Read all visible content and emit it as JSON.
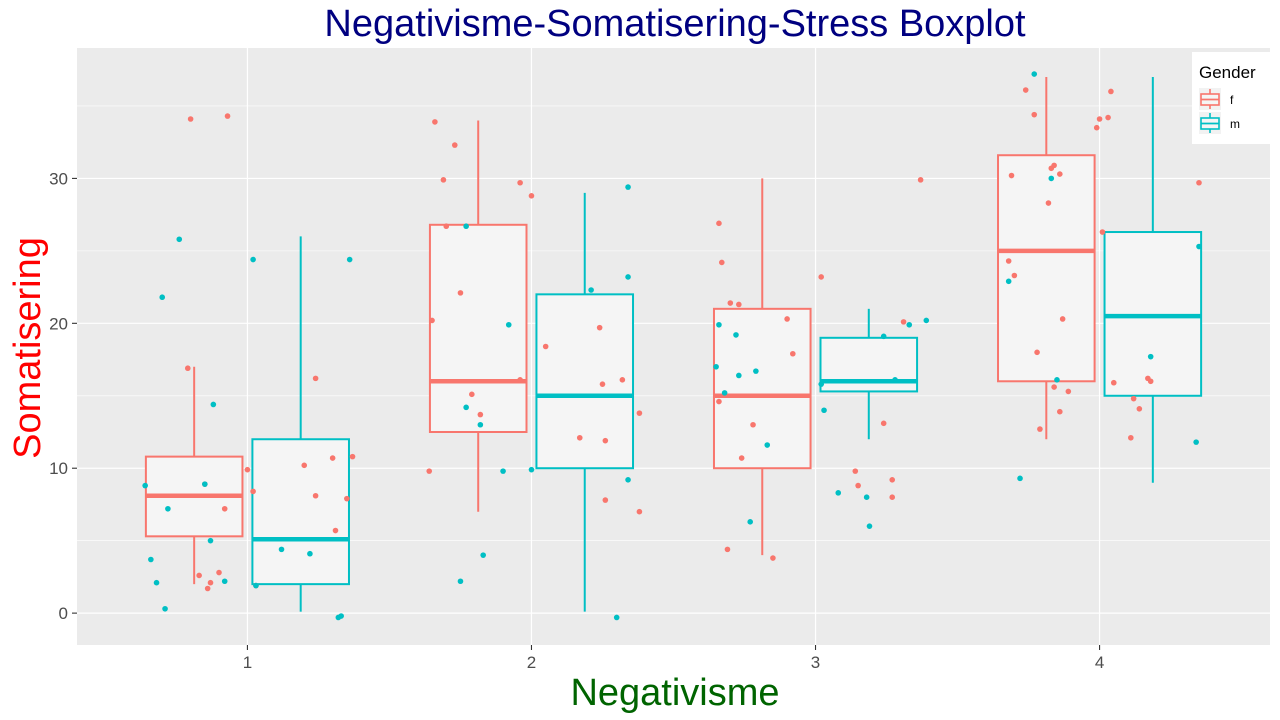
{
  "chart_data": {
    "type": "boxplot",
    "title": "Negativisme-Somatisering-Stress Boxplot",
    "xlabel": "Negativisme",
    "ylabel": "Somatisering",
    "categories": [
      "1",
      "2",
      "3",
      "4"
    ],
    "y_ticks": [
      0,
      10,
      20,
      30
    ],
    "ylim": [
      -2.2,
      39
    ],
    "xlim": [
      0.4,
      4.6
    ],
    "grid": true,
    "legend": {
      "title": "Gender",
      "position": "top-right",
      "entries": [
        "f",
        "m"
      ]
    },
    "colors": {
      "title": "#000080",
      "xlabel": "#006400",
      "ylabel": "#ff0000",
      "f": "#f8766d",
      "m": "#00bfc4",
      "panel": "#ebebeb",
      "box_fill": "#f5f5f5",
      "grid": "#ffffff"
    },
    "series": [
      {
        "name": "f",
        "boxes": [
          {
            "category": "1",
            "lower_whisker": 2,
            "q1": 5.3,
            "median": 8.1,
            "q3": 10.8,
            "upper_whisker": 17
          },
          {
            "category": "2",
            "lower_whisker": 7,
            "q1": 12.5,
            "median": 16,
            "q3": 26.8,
            "upper_whisker": 34
          },
          {
            "category": "3",
            "lower_whisker": 4,
            "q1": 10,
            "median": 15,
            "q3": 21,
            "upper_whisker": 30
          },
          {
            "category": "4",
            "lower_whisker": 12,
            "q1": 16,
            "median": 25,
            "q3": 31.6,
            "upper_whisker": 37
          }
        ],
        "points": [
          [
            0.8,
            34.1
          ],
          [
            0.93,
            34.3
          ],
          [
            0.79,
            16.9
          ],
          [
            0.83,
            2.6
          ],
          [
            0.87,
            2.1
          ],
          [
            0.9,
            2.8
          ],
          [
            0.86,
            1.7
          ],
          [
            1.0,
            9.9
          ],
          [
            0.92,
            7.2
          ],
          [
            0.85,
            8.9
          ],
          [
            1.24,
            16.2
          ],
          [
            1.37,
            10.8
          ],
          [
            1.35,
            7.9
          ],
          [
            1.2,
            10.2
          ],
          [
            1.3,
            10.7
          ],
          [
            1.24,
            8.1
          ],
          [
            1.31,
            5.7
          ],
          [
            1.02,
            8.4
          ],
          [
            1.03,
            1.9
          ],
          [
            1.66,
            33.9
          ],
          [
            1.69,
            29.9
          ],
          [
            1.73,
            32.3
          ],
          [
            1.64,
            9.8
          ],
          [
            1.65,
            20.2
          ],
          [
            1.79,
            15.1
          ],
          [
            1.82,
            13.7
          ],
          [
            1.96,
            29.7
          ],
          [
            2.0,
            28.8
          ],
          [
            1.7,
            26.7
          ],
          [
            1.75,
            22.1
          ],
          [
            1.96,
            16.1
          ],
          [
            2.05,
            18.4
          ],
          [
            2.24,
            19.7
          ],
          [
            2.17,
            12.1
          ],
          [
            2.25,
            15.8
          ],
          [
            2.32,
            16.1
          ],
          [
            2.26,
            11.9
          ],
          [
            2.26,
            7.8
          ],
          [
            2.38,
            13.8
          ],
          [
            2.38,
            7.0
          ],
          [
            2.66,
            26.9
          ],
          [
            2.67,
            24.2
          ],
          [
            2.66,
            14.6
          ],
          [
            2.7,
            21.4
          ],
          [
            2.73,
            21.3
          ],
          [
            2.69,
            4.4
          ],
          [
            2.74,
            10.7
          ],
          [
            2.85,
            3.8
          ],
          [
            2.78,
            13.0
          ],
          [
            2.9,
            20.3
          ],
          [
            2.92,
            17.9
          ],
          [
            3.02,
            23.2
          ],
          [
            3.14,
            9.8
          ],
          [
            3.15,
            8.8
          ],
          [
            3.24,
            13.1
          ],
          [
            3.27,
            9.2
          ],
          [
            3.27,
            8.0
          ],
          [
            3.31,
            20.1
          ],
          [
            3.37,
            29.9
          ],
          [
            3.68,
            24.3
          ],
          [
            3.69,
            30.2
          ],
          [
            3.7,
            23.3
          ],
          [
            3.74,
            36.1
          ],
          [
            3.77,
            34.4
          ],
          [
            3.78,
            18.0
          ],
          [
            3.82,
            28.3
          ],
          [
            3.83,
            30.7
          ],
          [
            3.84,
            30.9
          ],
          [
            3.86,
            30.3
          ],
          [
            3.87,
            20.3
          ],
          [
            3.89,
            15.3
          ],
          [
            3.79,
            12.7
          ],
          [
            3.84,
            15.6
          ],
          [
            3.86,
            13.9
          ],
          [
            3.99,
            33.5
          ],
          [
            4.0,
            34.1
          ],
          [
            4.03,
            34.2
          ],
          [
            4.04,
            36.0
          ],
          [
            4.01,
            26.3
          ],
          [
            4.05,
            15.9
          ],
          [
            4.11,
            12.1
          ],
          [
            4.12,
            14.8
          ],
          [
            4.14,
            14.1
          ],
          [
            4.17,
            16.2
          ],
          [
            4.18,
            16.0
          ],
          [
            4.35,
            29.7
          ]
        ]
      },
      {
        "name": "m",
        "boxes": [
          {
            "category": "1",
            "lower_whisker": 0.1,
            "q1": 2,
            "median": 5.1,
            "q3": 12,
            "upper_whisker": 26
          },
          {
            "category": "2",
            "lower_whisker": 0.1,
            "q1": 10,
            "median": 15,
            "q3": 22,
            "upper_whisker": 29
          },
          {
            "category": "3",
            "lower_whisker": 12,
            "q1": 15.3,
            "median": 16,
            "q3": 19,
            "upper_whisker": 21
          },
          {
            "category": "4",
            "lower_whisker": 9,
            "q1": 15,
            "median": 20.5,
            "q3": 26.3,
            "upper_whisker": 37
          }
        ],
        "points": [
          [
            0.64,
            8.8
          ],
          [
            0.66,
            3.7
          ],
          [
            0.68,
            2.1
          ],
          [
            0.7,
            21.8
          ],
          [
            0.71,
            0.3
          ],
          [
            0.72,
            7.2
          ],
          [
            0.76,
            25.8
          ],
          [
            0.85,
            8.9
          ],
          [
            0.87,
            5.0
          ],
          [
            0.88,
            14.4
          ],
          [
            0.92,
            2.2
          ],
          [
            1.02,
            24.4
          ],
          [
            1.03,
            1.9
          ],
          [
            1.12,
            4.4
          ],
          [
            1.22,
            4.1
          ],
          [
            1.32,
            -0.3
          ],
          [
            1.33,
            -0.2
          ],
          [
            1.36,
            24.4
          ],
          [
            1.75,
            2.2
          ],
          [
            1.77,
            26.7
          ],
          [
            1.77,
            14.2
          ],
          [
            1.82,
            13.0
          ],
          [
            1.83,
            4.0
          ],
          [
            1.9,
            9.8
          ],
          [
            1.92,
            19.9
          ],
          [
            2.0,
            9.9
          ],
          [
            2.21,
            22.3
          ],
          [
            2.3,
            -0.3
          ],
          [
            2.34,
            29.4
          ],
          [
            2.34,
            23.2
          ],
          [
            2.34,
            9.2
          ],
          [
            2.65,
            17.0
          ],
          [
            2.66,
            19.9
          ],
          [
            2.68,
            15.2
          ],
          [
            2.72,
            19.2
          ],
          [
            2.73,
            16.4
          ],
          [
            2.77,
            6.3
          ],
          [
            2.79,
            16.7
          ],
          [
            2.83,
            11.6
          ],
          [
            3.02,
            15.8
          ],
          [
            3.03,
            14.0
          ],
          [
            3.08,
            8.3
          ],
          [
            3.18,
            8.0
          ],
          [
            3.19,
            6.0
          ],
          [
            3.24,
            19.1
          ],
          [
            3.28,
            16.1
          ],
          [
            3.33,
            19.9
          ],
          [
            3.39,
            20.2
          ],
          [
            3.68,
            22.9
          ],
          [
            3.72,
            9.3
          ],
          [
            3.77,
            37.2
          ],
          [
            3.83,
            30.0
          ],
          [
            3.85,
            16.1
          ],
          [
            4.18,
            17.7
          ],
          [
            4.34,
            11.8
          ],
          [
            4.35,
            25.3
          ]
        ]
      }
    ]
  }
}
